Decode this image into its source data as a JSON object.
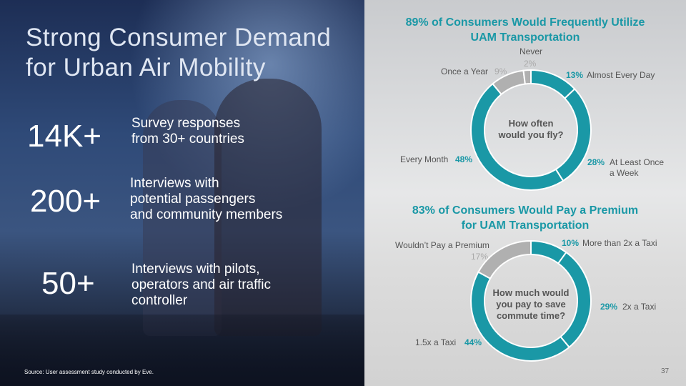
{
  "slide": {
    "title_line1": "Strong Consumer Demand",
    "title_line2": "for Urban Air Mobility",
    "stats": [
      {
        "value": "14K+",
        "desc1": "Survey responses",
        "desc2": "from 30+ countries"
      },
      {
        "value": "200+",
        "desc1": "Interviews with",
        "desc2": "potential passengers",
        "desc3": "and community members"
      },
      {
        "value": "50+",
        "desc1": "Interviews with pilots,",
        "desc2": "operators and air traffic",
        "desc3": "controller"
      }
    ],
    "source": "Source: User assessment study conducted by Eve.",
    "page_number": "37"
  },
  "colors": {
    "teal": "#1a98a6",
    "gray": "#b0b0b0"
  },
  "chart_data": [
    {
      "type": "pie",
      "donut": true,
      "title_line1": "89% of Consumers Would Frequently Utilize",
      "title_line2": "UAM Transportation",
      "center_line1": "How often",
      "center_line2": "would you fly?",
      "categories": [
        "Almost Every Day",
        "At Least Once a Week",
        "Every Month",
        "Once a Year",
        "Never"
      ],
      "values": [
        13,
        28,
        48,
        9,
        2
      ],
      "labels": [
        "13%",
        "28%",
        "48%",
        "9%",
        "2%"
      ],
      "colors": [
        "#1a98a6",
        "#1a98a6",
        "#1a98a6",
        "#b0b0b0",
        "#b0b0b0"
      ]
    },
    {
      "type": "pie",
      "donut": true,
      "title_line1": "83% of Consumers Would Pay a Premium",
      "title_line2": "for UAM Transportation",
      "center_line1": "How much would",
      "center_line2": "you pay to save",
      "center_line3": "commute time?",
      "categories": [
        "More than 2x a Taxi",
        "2x a Taxi",
        "1.5x a Taxi",
        "Wouldn’t Pay a Premium"
      ],
      "values": [
        10,
        29,
        44,
        17
      ],
      "labels": [
        "10%",
        "29%",
        "44%",
        "17%"
      ],
      "colors": [
        "#1a98a6",
        "#1a98a6",
        "#1a98a6",
        "#b0b0b0"
      ]
    }
  ]
}
